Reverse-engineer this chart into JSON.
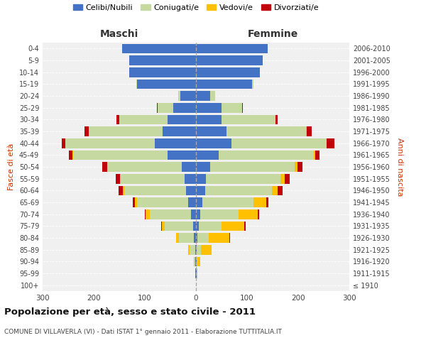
{
  "age_groups": [
    "100+",
    "95-99",
    "90-94",
    "85-89",
    "80-84",
    "75-79",
    "70-74",
    "65-69",
    "60-64",
    "55-59",
    "50-54",
    "45-49",
    "40-44",
    "35-39",
    "30-34",
    "25-29",
    "20-24",
    "15-19",
    "10-14",
    "5-9",
    "0-4"
  ],
  "birth_years": [
    "≤ 1910",
    "1911-1915",
    "1916-1920",
    "1921-1925",
    "1926-1930",
    "1931-1935",
    "1936-1940",
    "1941-1945",
    "1946-1950",
    "1951-1955",
    "1956-1960",
    "1961-1965",
    "1966-1970",
    "1971-1975",
    "1976-1980",
    "1981-1985",
    "1986-1990",
    "1991-1995",
    "1996-2000",
    "2001-2005",
    "2006-2010"
  ],
  "maschi": {
    "celibi": [
      0,
      1,
      1,
      2,
      4,
      6,
      10,
      15,
      20,
      22,
      28,
      55,
      80,
      65,
      55,
      45,
      30,
      115,
      130,
      130,
      145
    ],
    "coniugati": [
      0,
      0,
      2,
      10,
      30,
      55,
      80,
      100,
      120,
      125,
      145,
      185,
      175,
      145,
      95,
      30,
      5,
      2,
      1,
      0,
      0
    ],
    "vedovi": [
      0,
      0,
      1,
      3,
      5,
      6,
      8,
      4,
      3,
      2,
      1,
      1,
      0,
      0,
      0,
      0,
      0,
      0,
      0,
      0,
      0
    ],
    "divorziati": [
      0,
      0,
      0,
      0,
      0,
      1,
      2,
      4,
      8,
      8,
      10,
      8,
      8,
      8,
      5,
      1,
      0,
      0,
      0,
      0,
      0
    ]
  },
  "femmine": {
    "nubili": [
      0,
      1,
      1,
      2,
      3,
      5,
      8,
      12,
      18,
      20,
      28,
      45,
      70,
      60,
      50,
      50,
      28,
      110,
      125,
      130,
      140
    ],
    "coniugate": [
      0,
      0,
      2,
      8,
      22,
      45,
      75,
      100,
      130,
      145,
      165,
      185,
      185,
      155,
      105,
      40,
      10,
      2,
      0,
      0,
      0
    ],
    "vedove": [
      0,
      2,
      5,
      20,
      40,
      45,
      38,
      25,
      12,
      8,
      5,
      3,
      1,
      1,
      0,
      0,
      0,
      0,
      0,
      0,
      0
    ],
    "divorziate": [
      0,
      0,
      0,
      0,
      1,
      2,
      3,
      5,
      10,
      10,
      10,
      8,
      15,
      10,
      5,
      1,
      0,
      0,
      0,
      0,
      0
    ]
  },
  "colors": {
    "celibi_nubili": "#4472c4",
    "coniugati": "#c5d9a0",
    "vedovi": "#ffc000",
    "divorziati": "#c0000b"
  },
  "xlim": 300,
  "title": "Popolazione per età, sesso e stato civile - 2011",
  "subtitle": "COMUNE DI VILLAVERLA (VI) - Dati ISTAT 1° gennaio 2011 - Elaborazione TUTTITALIA.IT",
  "ylabel_left": "Fasce di età",
  "ylabel_right": "Anni di nascita",
  "xlabel_left": "Maschi",
  "xlabel_right": "Femmine",
  "bg_color": "#f0f0f0",
  "legend_labels": [
    "Celibi/Nubili",
    "Coniugati/e",
    "Vedovi/e",
    "Divorziati/e"
  ]
}
